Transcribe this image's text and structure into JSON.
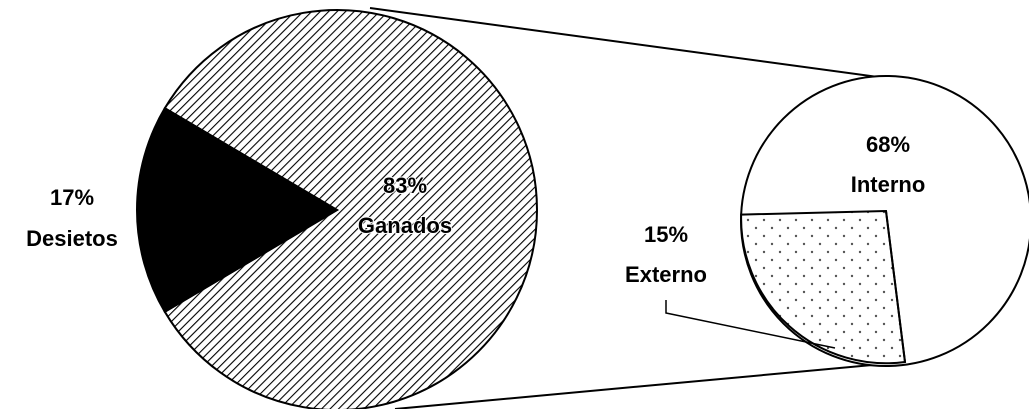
{
  "chart_data": {
    "type": "pie",
    "main_pie": {
      "slices": [
        {
          "label": "Ganados",
          "value": 83,
          "percent_label": "83%",
          "pattern": "diagonal-hatch"
        },
        {
          "label": "Desietos",
          "value": 17,
          "percent_label": "17%",
          "pattern": "solid-black"
        }
      ]
    },
    "secondary_pie": {
      "slices": [
        {
          "label": "Interno",
          "value": 68,
          "percent_label": "68%",
          "pattern": "white"
        },
        {
          "label": "Externo",
          "value": 15,
          "percent_label": "15%",
          "pattern": "dots"
        }
      ]
    },
    "colors": {
      "background": "#ffffff",
      "stroke": "#000000",
      "black_slice": "#000000",
      "dots": "#555555"
    },
    "legend": "none",
    "title": ""
  }
}
